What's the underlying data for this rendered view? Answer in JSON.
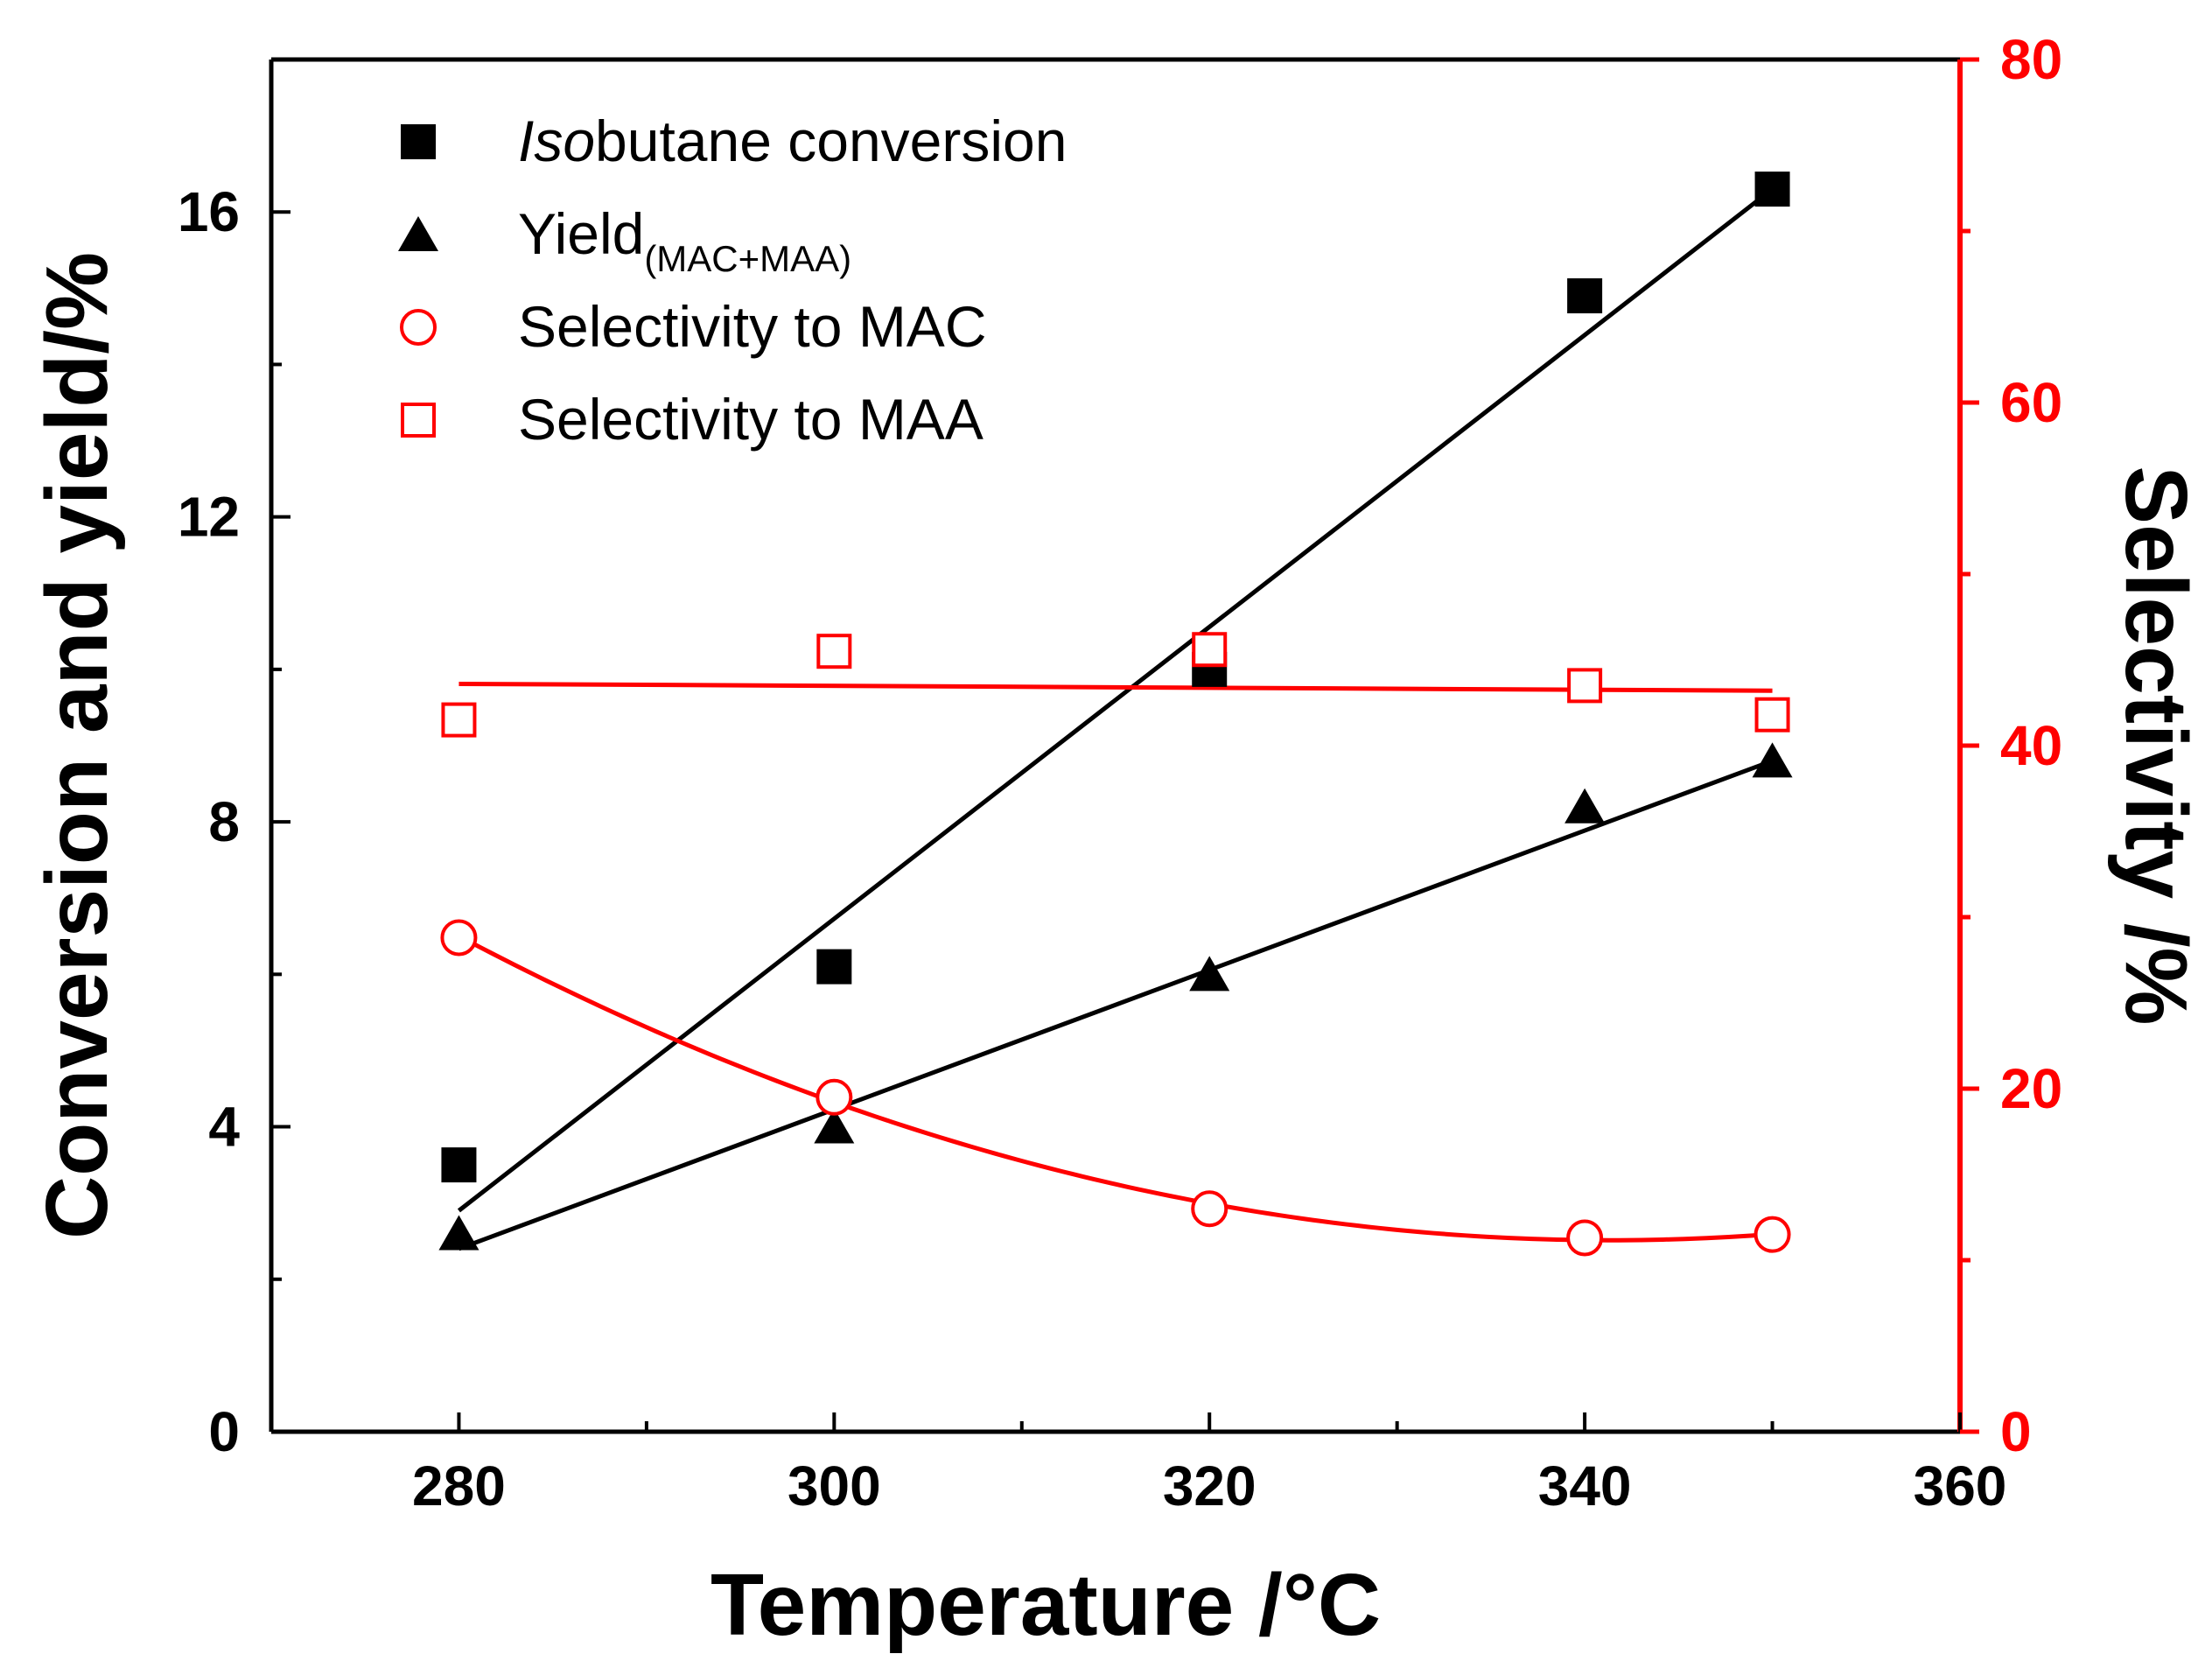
{
  "chart_data": {
    "type": "scatter",
    "xlabel": "Temperature /°C",
    "ylabel_left": "Conversion and yield/%",
    "ylabel_right": "Selectivity /%",
    "xlim": [
      270,
      360
    ],
    "ylim_left": [
      0,
      18
    ],
    "ylim_right": [
      0,
      80
    ],
    "x_ticks": [
      280,
      300,
      320,
      340,
      360
    ],
    "y_left_ticks": [
      0,
      4,
      8,
      12,
      16
    ],
    "y_right_ticks": [
      0,
      20,
      40,
      60,
      80
    ],
    "left_color": "#000000",
    "right_color": "#ff0000",
    "series": [
      {
        "name": "Isobutane conversion",
        "legend_italic": "Iso",
        "legend_rest": "butane conversion",
        "axis": "left",
        "marker": "filled-square",
        "color": "#000000",
        "x": [
          280,
          300,
          320,
          340,
          350
        ],
        "values": [
          3.5,
          6.1,
          10.0,
          14.9,
          16.3
        ],
        "fit": {
          "kind": "linear",
          "x": [
            280,
            350
          ],
          "y": [
            2.9,
            16.3
          ]
        }
      },
      {
        "name": "Yield(MAC+MAA)",
        "legend_main": "Yield",
        "legend_sub": "(MAC+MAA)",
        "axis": "left",
        "marker": "filled-triangle",
        "color": "#000000",
        "x": [
          280,
          300,
          320,
          340,
          350
        ],
        "values": [
          2.6,
          4.0,
          6.0,
          8.2,
          8.8
        ],
        "fit": {
          "kind": "linear",
          "x": [
            280,
            350
          ],
          "y": [
            2.4,
            8.8
          ]
        }
      },
      {
        "name": "Selectivity to MAC",
        "axis": "right",
        "marker": "open-circle",
        "color": "#ff0000",
        "x": [
          280,
          300,
          320,
          340,
          350
        ],
        "values": [
          28.8,
          19.5,
          13.0,
          11.3,
          11.5
        ],
        "fit": {
          "kind": "quadratic",
          "x": [
            280,
            300,
            320,
            340,
            350
          ],
          "y": [
            28.8,
            19.5,
            13.0,
            11.3,
            11.5
          ]
        }
      },
      {
        "name": "Selectivity to MAA",
        "axis": "right",
        "marker": "open-square",
        "color": "#ff0000",
        "x": [
          280,
          300,
          320,
          340,
          350
        ],
        "values": [
          41.5,
          45.5,
          45.6,
          43.5,
          41.8
        ],
        "fit": {
          "kind": "linear",
          "x": [
            280,
            350
          ],
          "y": [
            43.6,
            43.2
          ]
        }
      }
    ]
  }
}
